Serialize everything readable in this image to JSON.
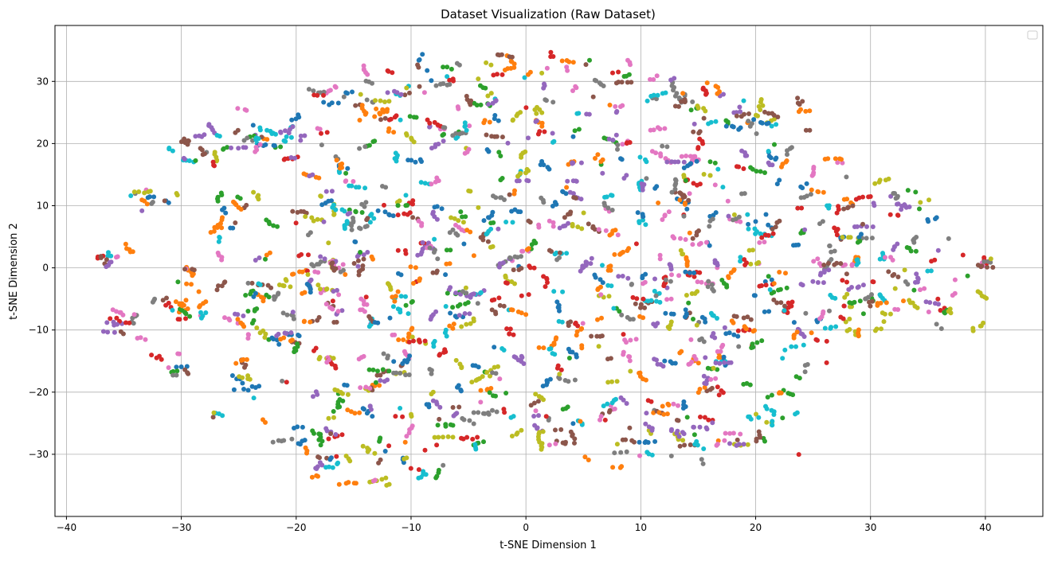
{
  "chart_data": {
    "type": "scatter",
    "title": "Dataset Visualization (Raw Dataset)",
    "xlabel": "t-SNE Dimension 1",
    "ylabel": "t-SNE Dimension 2",
    "xlim": [
      -41,
      45
    ],
    "ylim": [
      -40,
      39
    ],
    "xticks": [
      -40,
      -30,
      -20,
      -10,
      0,
      10,
      20,
      30,
      40
    ],
    "yticks": [
      -30,
      -20,
      -10,
      0,
      10,
      20,
      30
    ],
    "xtick_labels": [
      "−40",
      "−30",
      "−20",
      "−10",
      "0",
      "10",
      "20",
      "30",
      "40"
    ],
    "ytick_labels": [
      "−30",
      "−20",
      "−10",
      "0",
      "10",
      "20",
      "30"
    ],
    "grid": true,
    "legend": "top-right (empty)",
    "colors": [
      "#1f77b4",
      "#ff7f0e",
      "#2ca02c",
      "#d62728",
      "#9467bd",
      "#8c564b",
      "#e377c2",
      "#7f7f7f",
      "#bcbd22",
      "#17becf"
    ],
    "clusters": [
      {
        "x": -35.5,
        "y": 2.2,
        "sx": 0.8,
        "sy": 0.5,
        "n": 22
      },
      {
        "x": -34.8,
        "y": -9.5,
        "sx": 1.0,
        "sy": 1.0,
        "n": 30
      },
      {
        "x": -32.5,
        "y": 11.0,
        "sx": 1.2,
        "sy": 0.9,
        "n": 22
      },
      {
        "x": -31.0,
        "y": -6.5,
        "sx": 1.2,
        "sy": 1.5,
        "n": 25
      },
      {
        "x": -30.5,
        "y": -16.0,
        "sx": 1.0,
        "sy": 1.5,
        "n": 18
      },
      {
        "x": -29.5,
        "y": 17.0,
        "sx": 1.3,
        "sy": 2.0,
        "n": 20
      },
      {
        "x": -28.5,
        "y": -2.0,
        "sx": 1.5,
        "sy": 2.5,
        "n": 25
      },
      {
        "x": -26.0,
        "y": 20.5,
        "sx": 2.0,
        "sy": 1.5,
        "n": 35
      },
      {
        "x": -25.0,
        "y": 8.0,
        "sx": 2.0,
        "sy": 3.0,
        "n": 45
      },
      {
        "x": -24.5,
        "y": -7.0,
        "sx": 2.5,
        "sy": 3.5,
        "n": 55
      },
      {
        "x": -23.5,
        "y": -18.5,
        "sx": 1.5,
        "sy": 2.5,
        "n": 25
      },
      {
        "x": -21.0,
        "y": 22.0,
        "sx": 2.5,
        "sy": 2.5,
        "n": 50
      },
      {
        "x": -20.0,
        "y": 2.0,
        "sx": 2.5,
        "sy": 4.0,
        "n": 70
      },
      {
        "x": -19.5,
        "y": -12.0,
        "sx": 2.5,
        "sy": 3.0,
        "n": 55
      },
      {
        "x": -18.0,
        "y": -30.0,
        "sx": 2.5,
        "sy": 2.5,
        "n": 45
      },
      {
        "x": -17.0,
        "y": 14.0,
        "sx": 2.0,
        "sy": 3.0,
        "n": 50
      },
      {
        "x": -15.5,
        "y": 27.5,
        "sx": 2.5,
        "sy": 1.5,
        "n": 40
      },
      {
        "x": -15.0,
        "y": -22.5,
        "sx": 3.0,
        "sy": 3.0,
        "n": 70
      },
      {
        "x": -14.0,
        "y": -3.0,
        "sx": 3.0,
        "sy": 4.0,
        "n": 80
      },
      {
        "x": -13.0,
        "y": 9.0,
        "sx": 3.0,
        "sy": 3.5,
        "n": 65
      },
      {
        "x": -11.5,
        "y": 21.5,
        "sx": 2.5,
        "sy": 3.0,
        "n": 55
      },
      {
        "x": -11.0,
        "y": -31.0,
        "sx": 3.0,
        "sy": 2.5,
        "n": 50
      },
      {
        "x": -10.5,
        "y": -14.0,
        "sx": 2.5,
        "sy": 3.0,
        "n": 60
      },
      {
        "x": -9.0,
        "y": 30.0,
        "sx": 2.0,
        "sy": 1.5,
        "n": 25
      },
      {
        "x": -8.0,
        "y": 2.0,
        "sx": 2.5,
        "sy": 5.0,
        "n": 70
      },
      {
        "x": -7.0,
        "y": -25.0,
        "sx": 3.0,
        "sy": 3.0,
        "n": 55
      },
      {
        "x": -5.0,
        "y": 23.5,
        "sx": 2.5,
        "sy": 3.0,
        "n": 60
      },
      {
        "x": -4.5,
        "y": -8.0,
        "sx": 2.5,
        "sy": 4.0,
        "n": 60
      },
      {
        "x": -3.0,
        "y": 11.0,
        "sx": 2.5,
        "sy": 4.0,
        "n": 55
      },
      {
        "x": -2.5,
        "y": -18.0,
        "sx": 2.0,
        "sy": 3.0,
        "n": 40
      },
      {
        "x": -1.5,
        "y": 32.0,
        "sx": 3.5,
        "sy": 1.5,
        "n": 45
      },
      {
        "x": 0.0,
        "y": 0.0,
        "sx": 2.0,
        "sy": 4.0,
        "n": 55
      },
      {
        "x": 1.0,
        "y": 22.0,
        "sx": 2.5,
        "sy": 3.5,
        "n": 50
      },
      {
        "x": 2.0,
        "y": -26.0,
        "sx": 2.5,
        "sy": 2.0,
        "n": 40
      },
      {
        "x": 3.0,
        "y": -11.0,
        "sx": 2.5,
        "sy": 3.5,
        "n": 55
      },
      {
        "x": 4.0,
        "y": 8.5,
        "sx": 3.0,
        "sy": 4.0,
        "n": 65
      },
      {
        "x": 5.5,
        "y": -20.5,
        "sx": 2.5,
        "sy": 2.5,
        "n": 35
      },
      {
        "x": 6.5,
        "y": 29.5,
        "sx": 2.0,
        "sy": 3.0,
        "n": 30
      },
      {
        "x": 7.5,
        "y": -4.0,
        "sx": 3.0,
        "sy": 4.0,
        "n": 65
      },
      {
        "x": 8.0,
        "y": 17.5,
        "sx": 2.5,
        "sy": 3.5,
        "n": 45
      },
      {
        "x": 8.5,
        "y": -28.0,
        "sx": 2.0,
        "sy": 2.0,
        "n": 30
      },
      {
        "x": 10.5,
        "y": 6.0,
        "sx": 2.5,
        "sy": 4.0,
        "n": 55
      },
      {
        "x": 11.0,
        "y": -14.0,
        "sx": 2.5,
        "sy": 3.5,
        "n": 55
      },
      {
        "x": 12.5,
        "y": 28.5,
        "sx": 2.5,
        "sy": 2.0,
        "n": 45
      },
      {
        "x": 13.5,
        "y": -25.5,
        "sx": 2.5,
        "sy": 2.5,
        "n": 50
      },
      {
        "x": 14.0,
        "y": -3.0,
        "sx": 2.5,
        "sy": 4.0,
        "n": 65
      },
      {
        "x": 14.5,
        "y": 15.0,
        "sx": 3.0,
        "sy": 3.0,
        "n": 55
      },
      {
        "x": 16.5,
        "y": -13.5,
        "sx": 2.0,
        "sy": 3.5,
        "n": 45
      },
      {
        "x": 17.0,
        "y": 25.0,
        "sx": 2.5,
        "sy": 2.5,
        "n": 45
      },
      {
        "x": 17.5,
        "y": 3.5,
        "sx": 2.5,
        "sy": 4.0,
        "n": 60
      },
      {
        "x": 18.5,
        "y": -27.0,
        "sx": 2.0,
        "sy": 2.0,
        "n": 30
      },
      {
        "x": 20.0,
        "y": -6.5,
        "sx": 2.5,
        "sy": 4.0,
        "n": 55
      },
      {
        "x": 20.5,
        "y": 16.0,
        "sx": 2.5,
        "sy": 3.5,
        "n": 45
      },
      {
        "x": 21.5,
        "y": 24.5,
        "sx": 2.0,
        "sy": 2.0,
        "n": 30
      },
      {
        "x": 22.0,
        "y": -20.0,
        "sx": 1.5,
        "sy": 3.0,
        "n": 30
      },
      {
        "x": 23.0,
        "y": 2.0,
        "sx": 2.5,
        "sy": 4.0,
        "n": 55
      },
      {
        "x": 24.5,
        "y": -10.0,
        "sx": 2.5,
        "sy": 3.5,
        "n": 40
      },
      {
        "x": 26.0,
        "y": 13.5,
        "sx": 2.5,
        "sy": 2.5,
        "n": 35
      },
      {
        "x": 27.0,
        "y": -4.0,
        "sx": 2.5,
        "sy": 3.5,
        "n": 40
      },
      {
        "x": 28.5,
        "y": 5.0,
        "sx": 2.0,
        "sy": 3.5,
        "n": 35
      },
      {
        "x": 30.0,
        "y": -6.0,
        "sx": 2.0,
        "sy": 3.0,
        "n": 35
      },
      {
        "x": 31.5,
        "y": 3.0,
        "sx": 2.0,
        "sy": 3.5,
        "n": 35
      },
      {
        "x": 33.5,
        "y": 11.0,
        "sx": 1.5,
        "sy": 2.5,
        "n": 25
      },
      {
        "x": 34.0,
        "y": -6.0,
        "sx": 1.5,
        "sy": 3.5,
        "n": 30
      },
      {
        "x": 35.5,
        "y": 3.0,
        "sx": 1.5,
        "sy": 3.0,
        "n": 22
      },
      {
        "x": 37.5,
        "y": -3.5,
        "sx": 1.2,
        "sy": 2.5,
        "n": 15
      },
      {
        "x": 40.0,
        "y": 0.5,
        "sx": 0.7,
        "sy": 0.5,
        "n": 8
      },
      {
        "x": -27.0,
        "y": -23.5,
        "sx": 0.5,
        "sy": 0.6,
        "n": 5
      }
    ]
  }
}
